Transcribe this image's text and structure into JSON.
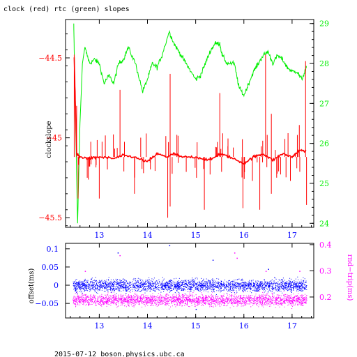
{
  "title": "clock (red) rtc (green) slopes",
  "footer": "2015-07-12 boson.physics.ubc.ca",
  "colors": {
    "axis": "#000000",
    "clock": "#ff0000",
    "rtc": "#00ee00",
    "offset": "#0000ff",
    "rndtrip": "#ff00ff",
    "xtick": "#0000ff"
  },
  "chart_data": [
    {
      "type": "line",
      "title": "clock (red) rtc (green) slopes",
      "xlabel": "",
      "xlim": [
        12.3,
        17.45
      ],
      "x_ticks": [
        13,
        14,
        15,
        16,
        17
      ],
      "x_tick_labels": [
        "13",
        "14",
        "15",
        "16",
        "17"
      ],
      "left_axis": {
        "label": "clockslope",
        "lim": [
          -45.56,
          -44.26
        ],
        "ticks": [
          -44.5,
          -45,
          -45.5
        ],
        "tick_labels": [
          "−44.5",
          "−45",
          "−45.5"
        ]
      },
      "right_axis": {
        "label": "",
        "lim": [
          23.9,
          29.1
        ],
        "ticks": [
          24,
          25,
          26,
          27,
          28,
          29
        ],
        "tick_labels": [
          "24",
          "25",
          "26",
          "27",
          "28",
          "29"
        ]
      },
      "series": [
        {
          "name": "clock",
          "axis": "left",
          "baseline": -45.12,
          "x": [
            12.48,
            12.53,
            12.6,
            12.8,
            13.0,
            13.3,
            13.5,
            13.7,
            14.0,
            14.2,
            14.4,
            14.55,
            14.7,
            15.0,
            15.3,
            15.5,
            15.7,
            16.0,
            16.2,
            16.4,
            16.6,
            16.8,
            17.0,
            17.15,
            17.3
          ],
          "y": [
            -44.5,
            -45.1,
            -45.12,
            -45.13,
            -45.12,
            -45.13,
            -45.11,
            -45.12,
            -45.15,
            -45.1,
            -45.12,
            -45.1,
            -45.12,
            -45.12,
            -45.14,
            -45.1,
            -45.12,
            -45.16,
            -45.12,
            -45.1,
            -45.14,
            -45.1,
            -45.12,
            -45.08,
            -45.08
          ],
          "spikes_up": [
            [
              12.48,
              -44.48
            ],
            [
              12.53,
              -44.8
            ],
            [
              13.43,
              -44.7
            ],
            [
              14.47,
              -44.6
            ],
            [
              15.5,
              -44.72
            ],
            [
              16.45,
              -44.48
            ],
            [
              16.57,
              -44.85
            ],
            [
              17.15,
              -44.92
            ],
            [
              17.28,
              -44.52
            ]
          ],
          "spikes_down": [
            [
              12.56,
              -45.38
            ],
            [
              12.75,
              -45.25
            ],
            [
              13.0,
              -45.38
            ],
            [
              13.73,
              -45.35
            ],
            [
              14.42,
              -45.5
            ],
            [
              14.47,
              -45.43
            ],
            [
              15.18,
              -45.45
            ],
            [
              15.98,
              -45.44
            ],
            [
              16.33,
              -45.45
            ],
            [
              16.57,
              -45.35
            ],
            [
              17.3,
              -45.42
            ]
          ]
        },
        {
          "name": "rtc",
          "axis": "right",
          "x": [
            12.47,
            12.5,
            12.55,
            12.6,
            12.65,
            12.7,
            12.8,
            12.9,
            13.0,
            13.1,
            13.2,
            13.3,
            13.4,
            13.5,
            13.6,
            13.75,
            13.9,
            14.0,
            14.1,
            14.2,
            14.3,
            14.45,
            14.55,
            14.65,
            14.75,
            14.85,
            15.0,
            15.1,
            15.2,
            15.3,
            15.4,
            15.5,
            15.55,
            15.65,
            15.8,
            15.9,
            16.0,
            16.1,
            16.2,
            16.3,
            16.4,
            16.5,
            16.6,
            16.7,
            16.8,
            16.9,
            17.0,
            17.1,
            17.2,
            17.3
          ],
          "y": [
            29.0,
            27.0,
            24.0,
            26.5,
            28.0,
            28.4,
            28.0,
            28.1,
            28.0,
            27.5,
            27.7,
            27.5,
            28.0,
            28.1,
            28.4,
            28.0,
            27.3,
            27.6,
            28.0,
            27.9,
            28.2,
            28.8,
            28.5,
            28.3,
            28.1,
            27.9,
            27.6,
            27.7,
            28.0,
            28.3,
            28.5,
            28.5,
            28.2,
            28.0,
            28.0,
            27.4,
            27.2,
            27.5,
            27.8,
            28.0,
            28.2,
            28.3,
            28.0,
            28.2,
            28.1,
            27.9,
            27.8,
            27.8,
            27.6,
            27.9
          ]
        }
      ]
    },
    {
      "type": "scatter",
      "xlabel": "",
      "xlim": [
        12.3,
        17.45
      ],
      "x_ticks": [
        13,
        14,
        15,
        16,
        17
      ],
      "x_tick_labels": [
        "13",
        "14",
        "15",
        "16",
        "17"
      ],
      "left_axis": {
        "label": "offset(ms)",
        "lim": [
          -0.09,
          0.115
        ],
        "ticks": [
          0.1,
          0.05,
          0,
          -0.05
        ],
        "tick_labels": [
          "0.1",
          "0.05",
          "0",
          "−0.05"
        ]
      },
      "right_axis": {
        "label": "rnd−trip(ms)",
        "lim": [
          0.12,
          0.405
        ],
        "ticks": [
          0.2,
          0.3,
          0.4
        ],
        "tick_labels": [
          "0.2",
          "0.3",
          "0.4"
        ]
      },
      "series": [
        {
          "name": "offset",
          "axis": "left",
          "x_range": [
            12.45,
            17.3
          ],
          "center": 0.0,
          "spread": 0.02,
          "outliers": [
            [
              13.38,
              0.09
            ],
            [
              14.45,
              0.11
            ],
            [
              15.35,
              0.07
            ],
            [
              16.5,
              0.045
            ],
            [
              15.0,
              -0.065
            ]
          ]
        },
        {
          "name": "rnd-trip",
          "axis": "right",
          "x_range": [
            12.45,
            17.3
          ],
          "center": 0.19,
          "spread": 0.025,
          "outliers": [
            [
              13.42,
              0.36
            ],
            [
              15.8,
              0.37
            ],
            [
              15.85,
              0.35
            ],
            [
              16.45,
              0.3
            ],
            [
              17.15,
              0.3
            ],
            [
              12.7,
              0.3
            ]
          ]
        }
      ]
    }
  ]
}
